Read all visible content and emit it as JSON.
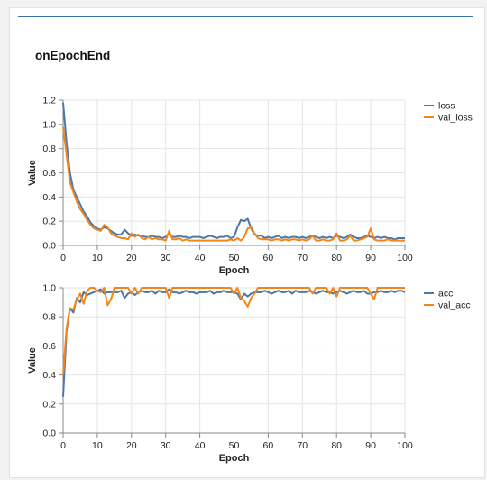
{
  "tab": {
    "label": "onEpochEnd"
  },
  "colors": {
    "blue": "#4c78a8",
    "orange": "#f58518"
  },
  "chart_data": [
    {
      "type": "line",
      "xlabel": "Epoch",
      "ylabel": "Value",
      "xlim": [
        0,
        100
      ],
      "ylim": [
        0,
        1.2
      ],
      "grid": true,
      "legend": "top-right",
      "x_ticks": [
        "0",
        "10",
        "20",
        "30",
        "40",
        "50",
        "60",
        "70",
        "80",
        "90",
        "100"
      ],
      "y_ticks": [
        "0.0",
        "0.2",
        "0.4",
        "0.6",
        "0.8",
        "1.0",
        "1.2"
      ],
      "series": [
        {
          "name": "loss",
          "color": "#4c78a8",
          "values": [
            1.18,
            0.85,
            0.6,
            0.46,
            0.4,
            0.34,
            0.28,
            0.24,
            0.19,
            0.16,
            0.14,
            0.13,
            0.15,
            0.14,
            0.12,
            0.1,
            0.09,
            0.09,
            0.13,
            0.1,
            0.08,
            0.09,
            0.08,
            0.08,
            0.07,
            0.07,
            0.08,
            0.07,
            0.07,
            0.06,
            0.07,
            0.1,
            0.07,
            0.07,
            0.08,
            0.07,
            0.07,
            0.06,
            0.07,
            0.07,
            0.07,
            0.06,
            0.07,
            0.08,
            0.07,
            0.06,
            0.07,
            0.07,
            0.08,
            0.06,
            0.07,
            0.15,
            0.21,
            0.2,
            0.22,
            0.14,
            0.09,
            0.08,
            0.08,
            0.06,
            0.07,
            0.06,
            0.07,
            0.08,
            0.06,
            0.07,
            0.06,
            0.07,
            0.07,
            0.06,
            0.07,
            0.06,
            0.07,
            0.08,
            0.07,
            0.06,
            0.07,
            0.06,
            0.07,
            0.06,
            0.08,
            0.07,
            0.06,
            0.07,
            0.09,
            0.07,
            0.06,
            0.06,
            0.07,
            0.08,
            0.07,
            0.06,
            0.07,
            0.06,
            0.07,
            0.06,
            0.06,
            0.05,
            0.06,
            0.06,
            0.06
          ]
        },
        {
          "name": "val_loss",
          "color": "#f58518",
          "values": [
            0.98,
            0.75,
            0.52,
            0.44,
            0.36,
            0.3,
            0.26,
            0.21,
            0.17,
            0.14,
            0.13,
            0.12,
            0.17,
            0.15,
            0.1,
            0.08,
            0.07,
            0.06,
            0.06,
            0.05,
            0.1,
            0.07,
            0.09,
            0.06,
            0.05,
            0.07,
            0.05,
            0.06,
            0.05,
            0.05,
            0.04,
            0.12,
            0.05,
            0.05,
            0.06,
            0.04,
            0.05,
            0.04,
            0.04,
            0.04,
            0.04,
            0.04,
            0.04,
            0.04,
            0.04,
            0.04,
            0.04,
            0.04,
            0.04,
            0.05,
            0.04,
            0.06,
            0.04,
            0.07,
            0.14,
            0.15,
            0.1,
            0.06,
            0.05,
            0.05,
            0.05,
            0.04,
            0.05,
            0.05,
            0.04,
            0.05,
            0.04,
            0.05,
            0.05,
            0.04,
            0.05,
            0.04,
            0.05,
            0.08,
            0.04,
            0.04,
            0.05,
            0.04,
            0.04,
            0.05,
            0.1,
            0.04,
            0.04,
            0.05,
            0.08,
            0.04,
            0.04,
            0.05,
            0.06,
            0.07,
            0.14,
            0.05,
            0.04,
            0.04,
            0.04,
            0.05,
            0.04,
            0.04,
            0.04,
            0.04,
            0.04
          ]
        }
      ]
    },
    {
      "type": "line",
      "xlabel": "Epoch",
      "ylabel": "Value",
      "xlim": [
        0,
        100
      ],
      "ylim": [
        0,
        1.0
      ],
      "grid": true,
      "legend": "top-right",
      "x_ticks": [
        "0",
        "10",
        "20",
        "30",
        "40",
        "50",
        "60",
        "70",
        "80",
        "90",
        "100"
      ],
      "y_ticks": [
        "0.0",
        "0.2",
        "0.4",
        "0.6",
        "0.8",
        "1.0"
      ],
      "series": [
        {
          "name": "acc",
          "color": "#4c78a8",
          "values": [
            0.25,
            0.7,
            0.86,
            0.83,
            0.93,
            0.9,
            0.97,
            0.95,
            0.96,
            0.97,
            0.98,
            0.99,
            0.96,
            0.97,
            0.97,
            0.97,
            0.97,
            0.98,
            0.93,
            0.96,
            0.97,
            0.95,
            0.97,
            0.98,
            0.97,
            0.97,
            0.98,
            0.96,
            0.98,
            0.97,
            0.97,
            0.99,
            0.97,
            0.97,
            0.96,
            0.97,
            0.98,
            0.97,
            0.97,
            0.96,
            0.97,
            0.97,
            0.97,
            0.98,
            0.96,
            0.97,
            0.97,
            0.98,
            0.97,
            0.97,
            0.97,
            0.96,
            0.92,
            0.96,
            0.94,
            0.96,
            0.97,
            0.97,
            0.97,
            0.98,
            0.97,
            0.96,
            0.97,
            0.98,
            0.97,
            0.97,
            0.98,
            0.96,
            0.98,
            0.97,
            0.97,
            0.97,
            0.98,
            0.97,
            0.96,
            0.97,
            0.98,
            0.97,
            0.97,
            0.96,
            0.97,
            0.98,
            0.97,
            0.96,
            0.97,
            0.98,
            0.97,
            0.97,
            0.98,
            0.96,
            0.96,
            0.97,
            0.97,
            0.98,
            0.97,
            0.97,
            0.98,
            0.97,
            0.98,
            0.98,
            0.97
          ]
        },
        {
          "name": "val_acc",
          "color": "#f58518",
          "values": [
            0.4,
            0.72,
            0.86,
            0.85,
            0.92,
            0.96,
            0.89,
            0.98,
            1.0,
            1.0,
            0.98,
            0.97,
            1.0,
            0.88,
            0.92,
            1.0,
            1.0,
            1.0,
            1.0,
            1.0,
            0.96,
            1.0,
            0.96,
            1.0,
            1.0,
            1.0,
            1.0,
            1.0,
            1.0,
            1.0,
            1.0,
            0.93,
            1.0,
            1.0,
            1.0,
            1.0,
            1.0,
            1.0,
            1.0,
            1.0,
            1.0,
            1.0,
            1.0,
            1.0,
            1.0,
            1.0,
            1.0,
            1.0,
            1.0,
            1.0,
            0.96,
            1.0,
            0.93,
            0.91,
            0.87,
            0.93,
            0.96,
            1.0,
            1.0,
            1.0,
            1.0,
            1.0,
            1.0,
            1.0,
            1.0,
            1.0,
            1.0,
            1.0,
            1.0,
            1.0,
            1.0,
            1.0,
            1.0,
            0.96,
            1.0,
            1.0,
            1.0,
            1.0,
            0.96,
            1.0,
            0.94,
            1.0,
            1.0,
            1.0,
            1.0,
            1.0,
            1.0,
            1.0,
            1.0,
            1.0,
            0.96,
            0.92,
            1.0,
            1.0,
            1.0,
            1.0,
            1.0,
            1.0,
            1.0,
            1.0,
            1.0
          ]
        }
      ]
    }
  ]
}
